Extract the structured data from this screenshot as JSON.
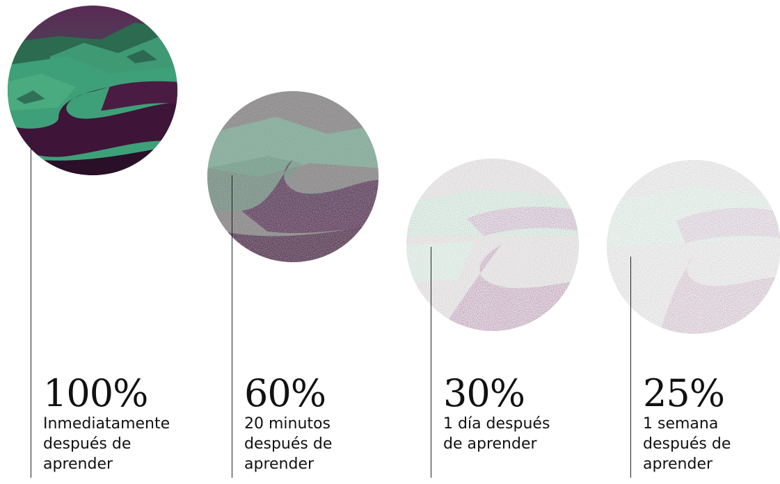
{
  "stages": [
    {
      "percent": "100%",
      "caption": "Inmediatamente\ndespués de\naprender",
      "clarity": 1.0,
      "image": "landscape-road-photo"
    },
    {
      "percent": "60%",
      "caption": "20 minutos\ndespués de\naprender",
      "clarity": 0.6,
      "image": "landscape-road-noisy"
    },
    {
      "percent": "30%",
      "caption": "1 día después\nde aprender",
      "clarity": 0.3,
      "image": "landscape-road-faded"
    },
    {
      "percent": "25%",
      "caption": "1 semana\ndespués de\naprender",
      "clarity": 0.25,
      "image": "landscape-road-faded"
    }
  ],
  "colors": {
    "green": "#3fa07a",
    "purple": "#3e1438",
    "dark_green": "#1f4a3a",
    "text": "#111111",
    "line": "#222222"
  }
}
